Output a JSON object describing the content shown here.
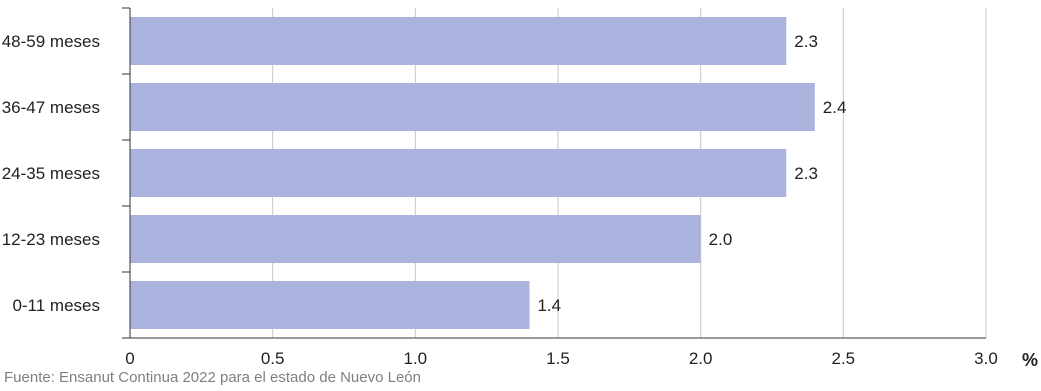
{
  "chart_data": {
    "type": "bar",
    "orientation": "horizontal",
    "categories": [
      "48-59 meses",
      "36-47 meses",
      "24-35 meses",
      "12-23 meses",
      "0-11 meses"
    ],
    "values": [
      2.3,
      2.4,
      2.3,
      2.0,
      1.4
    ],
    "value_labels": [
      "2.3",
      "2.4",
      "2.3",
      "2.0",
      "1.4"
    ],
    "x_ticks": [
      "0",
      "0.5",
      "1.0",
      "1.5",
      "2.0",
      "2.5",
      "3.0"
    ],
    "xlim": [
      0,
      3.0
    ],
    "unit_label": "%",
    "grid": true,
    "bar_color": "#aab3dd",
    "grid_color": "#c8c8c8"
  },
  "source": "Fuente: Ensanut Continua 2022 para el estado de Nuevo León"
}
